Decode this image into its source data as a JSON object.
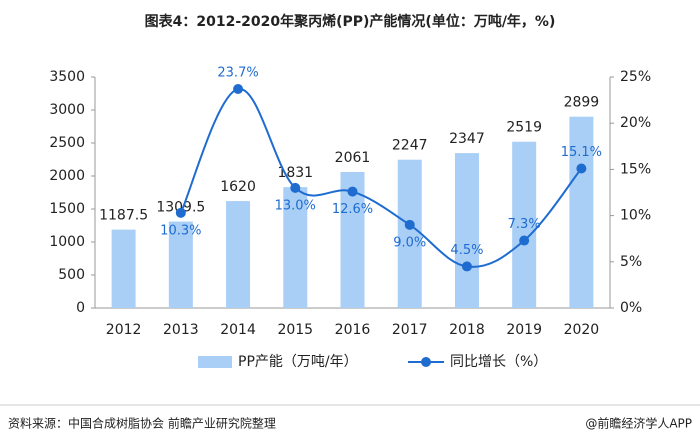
{
  "chart_data": {
    "type": "bar-line",
    "title": "图表4：2012-2020年聚丙烯(PP)产能情况(单位：万吨/年，%)",
    "categories": [
      "2012",
      "2013",
      "2014",
      "2015",
      "2016",
      "2017",
      "2018",
      "2019",
      "2020"
    ],
    "series": [
      {
        "name": "PP产能（万吨/年）",
        "type": "bar",
        "color": "#a9cff6",
        "values": [
          1187.5,
          1309.5,
          1620,
          1831,
          2061,
          2247,
          2347,
          2519,
          2899
        ]
      },
      {
        "name": "同比增长（%）",
        "type": "line",
        "axis": "y2",
        "color": "#1f6cd1",
        "values": [
          null,
          10.3,
          23.7,
          13.0,
          12.6,
          9.0,
          4.5,
          7.3,
          15.1
        ],
        "value_labels": [
          null,
          "10.3%",
          "23.7%",
          "13.0%",
          "12.6%",
          "9.0%",
          "4.5%",
          "7.3%",
          "15.1%"
        ]
      }
    ],
    "ylim": [
      0,
      3500
    ],
    "yticks": [
      0,
      500,
      1000,
      1500,
      2000,
      2500,
      3000,
      3500
    ],
    "y2lim": [
      0,
      25
    ],
    "y2ticks": [
      {
        "value": 0,
        "label": "0%"
      },
      {
        "value": 5,
        "label": "5%"
      },
      {
        "value": 10,
        "label": "10%"
      },
      {
        "value": 15,
        "label": "15%"
      },
      {
        "value": 20,
        "label": "20%"
      },
      {
        "value": 25,
        "label": "25%"
      }
    ],
    "legend": "bottom",
    "source": "资料来源：中国合成树脂协会 前瞻产业研究院整理",
    "brand": "@前瞻经济学人APP"
  }
}
